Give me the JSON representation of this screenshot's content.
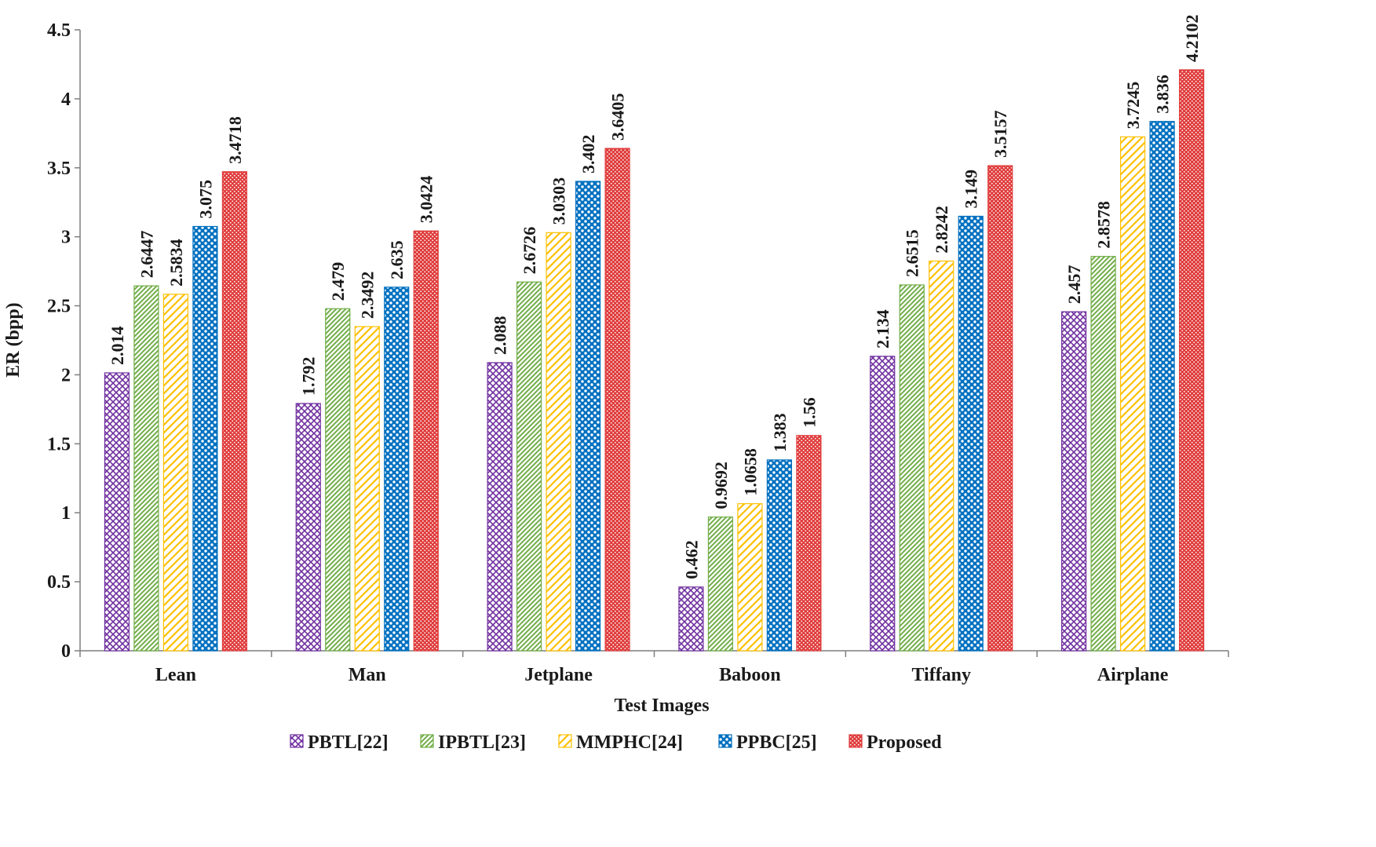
{
  "chart_data": {
    "type": "bar",
    "title": "",
    "xlabel": "Test Images",
    "ylabel": "ER (bpp)",
    "ylim": [
      0,
      4.5
    ],
    "ytick_step": 0.5,
    "yticks": [
      "0",
      "0.5",
      "1",
      "1.5",
      "2",
      "2.5",
      "3",
      "3.5",
      "4",
      "4.5"
    ],
    "grid": false,
    "legend_position": "bottom",
    "categories": [
      "Lean",
      "Man",
      "Jetplane",
      "Baboon",
      "Tiffany",
      "Airplane"
    ],
    "series": [
      {
        "name": "PBTL[22]",
        "color": "#7030a0",
        "pattern": "crosshatch",
        "values": [
          2.014,
          1.792,
          2.088,
          0.462,
          2.134,
          2.457
        ],
        "labels": [
          "2.014",
          "1.792",
          "2.088",
          "0.462",
          "2.134",
          "2.457"
        ]
      },
      {
        "name": "IPBTL[23]",
        "color": "#70ad47",
        "pattern": "diagonal",
        "values": [
          2.6447,
          2.479,
          2.6726,
          0.9692,
          2.6515,
          2.8578
        ],
        "labels": [
          "2.6447",
          "2.479",
          "2.6726",
          "0.9692",
          "2.6515",
          "2.8578"
        ]
      },
      {
        "name": "MMPHC[24]",
        "color": "#ffc000",
        "pattern": "wide-diagonal",
        "values": [
          2.5834,
          2.3492,
          3.0303,
          1.0658,
          2.8242,
          3.7245
        ],
        "labels": [
          "2.5834",
          "2.3492",
          "3.0303",
          "1.0658",
          "2.8242",
          "3.7245"
        ]
      },
      {
        "name": "PPBC[25]",
        "color": "#0070c0",
        "pattern": "dots",
        "values": [
          3.075,
          2.635,
          3.402,
          1.383,
          3.149,
          3.836
        ],
        "labels": [
          "3.075",
          "2.635",
          "3.402",
          "1.383",
          "3.149",
          "3.836"
        ]
      },
      {
        "name": "Proposed",
        "color": "#e03c3c",
        "pattern": "fine-dots",
        "values": [
          3.4718,
          3.0424,
          3.6405,
          1.56,
          3.5157,
          4.2102
        ],
        "labels": [
          "3.4718",
          "3.0424",
          "3.6405",
          "1.56",
          "3.5157",
          "4.2102"
        ]
      }
    ]
  }
}
